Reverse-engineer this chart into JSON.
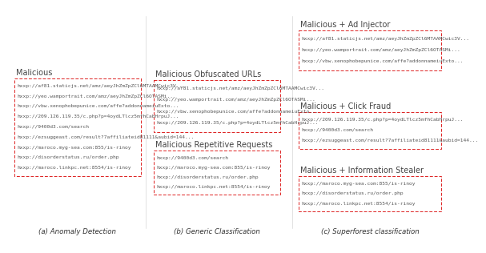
{
  "title_a": "(a) Anomaly Detection",
  "title_b": "(b) Generic Classification",
  "title_c": "(c) Superforest classification",
  "box_a": {
    "label": "Malicious",
    "lines": [
      "hxxp://af81.staticjs.net/amz/aeyJhZmZpZCl6MTAAMCwic3V...",
      "hxxp://yeo.wamportrait.com/amz/aeyJhZmZpZCl6OTASMi...",
      "hxxp://vbw.xenophobepunice.com/affe?addonnameiuExto...",
      "hxxp://209.126.119.35/c.php?p=4oydLTlcz5mfhCabHrpuJ...",
      "hxxp://9400d3.com/search",
      "hxxp://ezsuggeast.com/result?7affiliateid81111&aubid=144...",
      "hxxp://maroco.myg-sea.com:855/is-rinoy",
      "hxxp://disorderstatus.ru/order.php",
      "hxxp://maroco.linkpc.net:8554/is-rinoy"
    ]
  },
  "boxes_b": [
    {
      "label": "Malicious Obfuscated URLs",
      "lines": [
        "hxxp://af81.staticjs.net/amz/aeyJhZmZpZCl6MTAAMCwic3V...",
        "hxxp://yeo.wamportrait.com/amz/aeyJhZmZpZCl6OTASMi...",
        "hxxp://vbw.xenophobepunice.com/affe?addonnameiuExto...",
        "hxxp://209.126.119.35/c.php?p=4oydLTlcz5mfhCabHrpuJ..."
      ]
    },
    {
      "label": "Malicious Repetitive Requests",
      "lines": [
        "hxxp://9400d3.com/search",
        "hxxp://maroco.myg-sea.com:855/is-rinoy",
        "hxxp://disorderstatus.ru/order.php",
        "hxxp://maroco.linkpc.net:8554/is-rinoy"
      ]
    }
  ],
  "boxes_c": [
    {
      "label": "Malicious + Ad Injector",
      "lines": [
        "hxxp://af81.staticjs.net/amz/aeyJhZmZpZCl6MTAAMCwic3V...",
        "hxxp://yeo.wamportrait.com/amz/aeyJhZmZpZCl6OTASMi...",
        "hxxp://vbw.xenophobepunice.com/affe?addonnameiuExto..."
      ]
    },
    {
      "label": "Malicious + Click Fraud",
      "lines": [
        "hxxp://209.126.119.35/c.php?p=4oydLTlcz5mfhCabHrpuJ...",
        "hxxp://9400d3.com/search",
        "hxxp://ezsuggeast.com/result?7affiliateid81111&aubid=144..."
      ]
    },
    {
      "label": "Malicious + Information Stealer",
      "lines": [
        "hxxp://maroco.myg-sea.com:855/is-rinoy",
        "hxxp://disorderstatus.ru/order.php",
        "hxxp://maroco.linkpc.net:8554/is-rinoy"
      ]
    }
  ],
  "dashed_color": "#dd2222",
  "label_color": "#444444",
  "bg_color": "#ffffff",
  "line_fontsize": 4.5,
  "label_fontsize": 7.0,
  "subtitle_fontsize": 6.2
}
